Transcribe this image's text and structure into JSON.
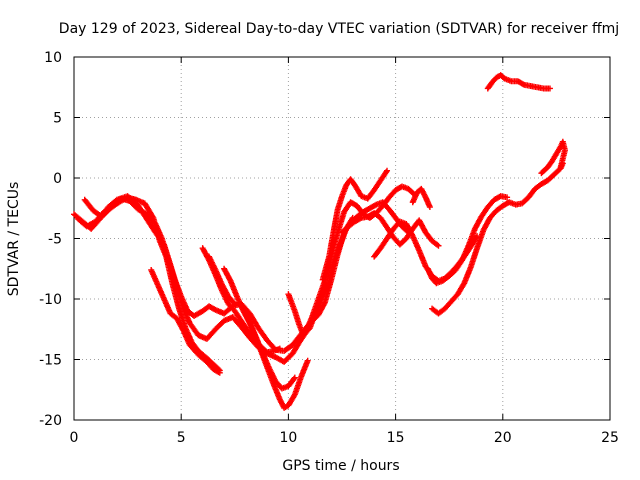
{
  "chart_data": {
    "type": "scatter",
    "title": "Day 129 of 2023, Sidereal Day-to-day VTEC variation (SDTVAR) for receiver ffmj",
    "xlabel": "GPS time / hours",
    "ylabel": "SDTVAR / TECUs",
    "xlim": [
      0,
      25
    ],
    "ylim": [
      -20,
      10
    ],
    "xticks": [
      0,
      5,
      10,
      15,
      20,
      25
    ],
    "yticks": [
      -20,
      -15,
      -10,
      -5,
      0,
      5,
      10
    ],
    "xtick_labels": [
      "0",
      "5",
      "10",
      "15",
      "20",
      "25"
    ],
    "ytick_labels": [
      "-20",
      "-15",
      "-10",
      "-5",
      "0",
      "5",
      "10"
    ],
    "grid": true,
    "marker": "plus",
    "color": "#ff0000",
    "series": [
      {
        "points": [
          [
            0.0,
            -3.0
          ],
          [
            0.4,
            -3.6
          ],
          [
            0.8,
            -4.2
          ],
          [
            1.2,
            -3.4
          ],
          [
            1.6,
            -2.4
          ],
          [
            2.0,
            -1.8
          ],
          [
            2.5,
            -1.5
          ],
          [
            3.0,
            -2.3
          ],
          [
            3.4,
            -3.4
          ],
          [
            3.8,
            -4.5
          ],
          [
            4.2,
            -5.5
          ],
          [
            4.5,
            -7.2
          ],
          [
            4.8,
            -9.0
          ],
          [
            5.1,
            -10.8
          ],
          [
            5.4,
            -12.0
          ],
          [
            5.8,
            -13.0
          ],
          [
            6.2,
            -13.3
          ],
          [
            6.6,
            -12.5
          ],
          [
            7.0,
            -11.8
          ],
          [
            7.4,
            -11.5
          ],
          [
            7.8,
            -12.3
          ],
          [
            8.2,
            -13.2
          ],
          [
            8.6,
            -14.0
          ],
          [
            9.0,
            -14.5
          ],
          [
            9.4,
            -14.8
          ],
          [
            9.8,
            -15.2
          ],
          [
            10.2,
            -14.5
          ],
          [
            10.5,
            -13.6
          ],
          [
            10.8,
            -12.8
          ],
          [
            11.1,
            -11.5
          ],
          [
            11.4,
            -10.0
          ],
          [
            11.7,
            -8.5
          ],
          [
            12.0,
            -6.5
          ],
          [
            12.3,
            -4.5
          ],
          [
            12.6,
            -2.8
          ],
          [
            12.9,
            -2.0
          ],
          [
            13.2,
            -2.3
          ],
          [
            13.5,
            -3.0
          ],
          [
            13.8,
            -3.3
          ],
          [
            14.1,
            -2.9
          ],
          [
            14.4,
            -2.3
          ],
          [
            14.7,
            -1.6
          ],
          [
            15.0,
            -1.0
          ],
          [
            15.3,
            -0.7
          ],
          [
            15.6,
            -0.9
          ],
          [
            15.9,
            -1.4
          ]
        ]
      },
      {
        "points": [
          [
            0.2,
            -3.4
          ],
          [
            0.6,
            -4.0
          ],
          [
            1.0,
            -3.6
          ],
          [
            1.4,
            -2.8
          ],
          [
            1.8,
            -2.2
          ],
          [
            2.2,
            -1.7
          ],
          [
            2.6,
            -1.9
          ],
          [
            3.0,
            -2.6
          ],
          [
            3.4,
            -3.0
          ],
          [
            3.8,
            -3.8
          ],
          [
            4.1,
            -5.0
          ],
          [
            4.4,
            -6.8
          ],
          [
            4.7,
            -8.4
          ],
          [
            5.0,
            -9.8
          ],
          [
            5.3,
            -11.0
          ],
          [
            5.6,
            -11.4
          ],
          [
            6.0,
            -11.0
          ],
          [
            6.3,
            -10.6
          ],
          [
            6.6,
            -10.9
          ],
          [
            7.0,
            -11.2
          ],
          [
            7.4,
            -10.6
          ],
          [
            7.8,
            -10.4
          ],
          [
            8.2,
            -11.2
          ],
          [
            8.6,
            -12.4
          ],
          [
            9.0,
            -13.4
          ],
          [
            9.4,
            -14.2
          ],
          [
            9.8,
            -14.3
          ],
          [
            10.2,
            -13.8
          ],
          [
            10.6,
            -12.9
          ],
          [
            11.0,
            -12.0
          ],
          [
            11.4,
            -11.3
          ],
          [
            11.7,
            -10.3
          ],
          [
            12.0,
            -8.4
          ],
          [
            12.3,
            -6.3
          ],
          [
            12.6,
            -4.5
          ],
          [
            12.9,
            -3.7
          ],
          [
            13.2,
            -3.2
          ],
          [
            13.5,
            -2.8
          ],
          [
            13.8,
            -2.5
          ],
          [
            14.1,
            -2.2
          ],
          [
            14.4,
            -2.0
          ],
          [
            14.7,
            -2.6
          ],
          [
            15.0,
            -3.3
          ],
          [
            15.3,
            -4.0
          ],
          [
            15.6,
            -4.5
          ]
        ]
      },
      {
        "points": [
          [
            0.5,
            -1.8
          ],
          [
            0.9,
            -2.7
          ],
          [
            1.3,
            -3.2
          ],
          [
            1.7,
            -2.5
          ],
          [
            2.1,
            -2.0
          ],
          [
            2.5,
            -1.6
          ],
          [
            2.9,
            -1.8
          ],
          [
            3.3,
            -2.1
          ],
          [
            3.7,
            -3.3
          ],
          [
            4.0,
            -5.2
          ],
          [
            4.3,
            -6.5
          ],
          [
            4.6,
            -8.8
          ],
          [
            4.9,
            -10.8
          ],
          [
            5.2,
            -12.4
          ],
          [
            5.5,
            -13.6
          ],
          [
            5.8,
            -14.3
          ],
          [
            6.2,
            -14.9
          ],
          [
            6.5,
            -15.4
          ],
          [
            6.8,
            -15.9
          ]
        ]
      },
      {
        "points": [
          [
            3.6,
            -7.6
          ],
          [
            3.9,
            -8.8
          ],
          [
            4.2,
            -10.0
          ],
          [
            4.5,
            -11.2
          ],
          [
            4.8,
            -11.6
          ],
          [
            5.1,
            -12.6
          ],
          [
            5.4,
            -13.8
          ],
          [
            5.8,
            -14.6
          ],
          [
            6.2,
            -15.2
          ],
          [
            6.5,
            -15.8
          ],
          [
            6.8,
            -16.1
          ]
        ]
      },
      {
        "points": [
          [
            6.0,
            -5.8
          ],
          [
            6.3,
            -6.8
          ],
          [
            6.6,
            -8.0
          ],
          [
            6.9,
            -9.3
          ],
          [
            7.2,
            -10.4
          ],
          [
            7.5,
            -11.0
          ],
          [
            7.8,
            -11.8
          ],
          [
            8.1,
            -12.6
          ],
          [
            8.4,
            -13.3
          ],
          [
            8.7,
            -13.9
          ],
          [
            9.0,
            -14.4
          ],
          [
            9.3,
            -14.3
          ],
          [
            9.6,
            -14.1
          ]
        ]
      },
      {
        "points": [
          [
            6.3,
            -6.5
          ],
          [
            6.6,
            -7.6
          ],
          [
            6.9,
            -8.8
          ],
          [
            7.2,
            -9.8
          ],
          [
            7.5,
            -10.4
          ]
        ]
      },
      {
        "points": [
          [
            7.0,
            -7.5
          ],
          [
            7.3,
            -8.5
          ],
          [
            7.6,
            -9.8
          ],
          [
            7.9,
            -11.0
          ],
          [
            8.2,
            -12.0
          ],
          [
            8.5,
            -13.2
          ],
          [
            8.8,
            -14.5
          ],
          [
            9.1,
            -15.7
          ],
          [
            9.4,
            -16.8
          ],
          [
            9.7,
            -17.4
          ],
          [
            10.0,
            -17.2
          ],
          [
            10.3,
            -16.5
          ]
        ]
      },
      {
        "points": [
          [
            7.8,
            -10.5
          ],
          [
            8.1,
            -11.6
          ],
          [
            8.4,
            -12.8
          ],
          [
            8.7,
            -14.2
          ],
          [
            9.0,
            -15.6
          ],
          [
            9.3,
            -17.0
          ],
          [
            9.6,
            -18.3
          ],
          [
            9.8,
            -19.0
          ],
          [
            10.0,
            -18.8
          ],
          [
            10.3,
            -17.9
          ],
          [
            10.6,
            -16.4
          ],
          [
            10.9,
            -15.1
          ]
        ]
      },
      {
        "points": [
          [
            10.0,
            -9.6
          ],
          [
            10.3,
            -11.0
          ],
          [
            10.5,
            -12.1
          ],
          [
            10.7,
            -13.0
          ],
          [
            11.0,
            -12.4
          ],
          [
            11.3,
            -11.0
          ],
          [
            11.6,
            -9.8
          ],
          [
            11.9,
            -8.6
          ],
          [
            12.1,
            -7.0
          ],
          [
            12.4,
            -5.6
          ],
          [
            12.7,
            -4.2
          ],
          [
            13.0,
            -3.3
          ]
        ]
      },
      {
        "points": [
          [
            11.6,
            -8.4
          ],
          [
            11.9,
            -6.5
          ],
          [
            12.1,
            -4.5
          ],
          [
            12.3,
            -2.6
          ],
          [
            12.5,
            -1.5
          ],
          [
            12.7,
            -0.6
          ],
          [
            12.9,
            -0.1
          ],
          [
            13.1,
            -0.6
          ],
          [
            13.4,
            -1.5
          ],
          [
            13.7,
            -1.7
          ],
          [
            14.0,
            -1.0
          ],
          [
            14.3,
            -0.2
          ],
          [
            14.6,
            0.6
          ]
        ]
      },
      {
        "points": [
          [
            12.5,
            -4.5
          ],
          [
            12.8,
            -4.0
          ],
          [
            13.1,
            -3.6
          ],
          [
            13.4,
            -3.3
          ],
          [
            13.7,
            -3.2
          ],
          [
            14.0,
            -2.9
          ],
          [
            14.3,
            -3.3
          ],
          [
            14.6,
            -4.1
          ],
          [
            14.9,
            -4.9
          ],
          [
            15.2,
            -5.5
          ],
          [
            15.5,
            -5.0
          ],
          [
            15.8,
            -4.2
          ],
          [
            16.1,
            -3.5
          ],
          [
            16.4,
            -4.5
          ],
          [
            16.7,
            -5.2
          ],
          [
            17.0,
            -5.6
          ]
        ]
      },
      {
        "points": [
          [
            14.0,
            -6.5
          ],
          [
            14.3,
            -5.8
          ],
          [
            14.6,
            -5.0
          ],
          [
            14.9,
            -4.2
          ],
          [
            15.2,
            -3.6
          ],
          [
            15.5,
            -3.8
          ],
          [
            15.8,
            -4.8
          ],
          [
            16.1,
            -6.0
          ],
          [
            16.4,
            -7.3
          ],
          [
            16.7,
            -8.1
          ],
          [
            17.0,
            -8.5
          ],
          [
            17.3,
            -8.3
          ],
          [
            17.6,
            -7.8
          ],
          [
            17.9,
            -7.2
          ],
          [
            18.2,
            -6.5
          ],
          [
            18.5,
            -5.7
          ],
          [
            18.8,
            -4.8
          ]
        ]
      },
      {
        "points": [
          [
            15.8,
            -2.0
          ],
          [
            16.0,
            -1.2
          ],
          [
            16.2,
            -0.9
          ],
          [
            16.4,
            -1.6
          ],
          [
            16.6,
            -2.4
          ]
        ]
      },
      {
        "points": [
          [
            16.5,
            -7.5
          ],
          [
            16.7,
            -8.3
          ],
          [
            16.9,
            -8.7
          ],
          [
            17.2,
            -8.5
          ],
          [
            17.5,
            -8.1
          ],
          [
            17.8,
            -7.6
          ],
          [
            18.1,
            -6.8
          ],
          [
            18.4,
            -5.6
          ],
          [
            18.7,
            -4.2
          ],
          [
            19.0,
            -3.2
          ],
          [
            19.3,
            -2.4
          ],
          [
            19.6,
            -1.8
          ],
          [
            19.9,
            -1.5
          ],
          [
            20.2,
            -1.6
          ]
        ]
      },
      {
        "points": [
          [
            16.7,
            -10.8
          ],
          [
            17.0,
            -11.2
          ],
          [
            17.3,
            -10.8
          ],
          [
            17.6,
            -10.2
          ],
          [
            17.9,
            -9.6
          ],
          [
            18.2,
            -8.7
          ],
          [
            18.5,
            -7.4
          ],
          [
            18.8,
            -5.8
          ],
          [
            19.1,
            -4.3
          ],
          [
            19.4,
            -3.3
          ],
          [
            19.7,
            -2.7
          ],
          [
            20.0,
            -2.3
          ],
          [
            20.3,
            -2.0
          ],
          [
            20.6,
            -2.2
          ],
          [
            20.9,
            -2.1
          ],
          [
            21.2,
            -1.6
          ],
          [
            21.5,
            -0.9
          ],
          [
            21.8,
            -0.5
          ],
          [
            22.1,
            -0.2
          ],
          [
            22.4,
            0.3
          ],
          [
            22.7,
            0.8
          ],
          [
            22.8,
            1.2
          ]
        ]
      },
      {
        "points": [
          [
            19.3,
            7.4
          ],
          [
            19.5,
            7.9
          ],
          [
            19.7,
            8.3
          ],
          [
            19.9,
            8.5
          ],
          [
            20.1,
            8.2
          ],
          [
            20.4,
            8.0
          ],
          [
            20.7,
            8.0
          ],
          [
            21.0,
            7.7
          ],
          [
            21.3,
            7.6
          ],
          [
            21.6,
            7.5
          ],
          [
            21.9,
            7.4
          ],
          [
            22.2,
            7.4
          ]
        ]
      },
      {
        "points": [
          [
            21.8,
            0.4
          ],
          [
            22.1,
            0.9
          ],
          [
            22.3,
            1.4
          ],
          [
            22.5,
            2.0
          ],
          [
            22.7,
            2.6
          ],
          [
            22.8,
            3.0
          ],
          [
            22.9,
            2.3
          ],
          [
            22.8,
            1.6
          ],
          [
            22.7,
            0.9
          ]
        ]
      }
    ]
  }
}
